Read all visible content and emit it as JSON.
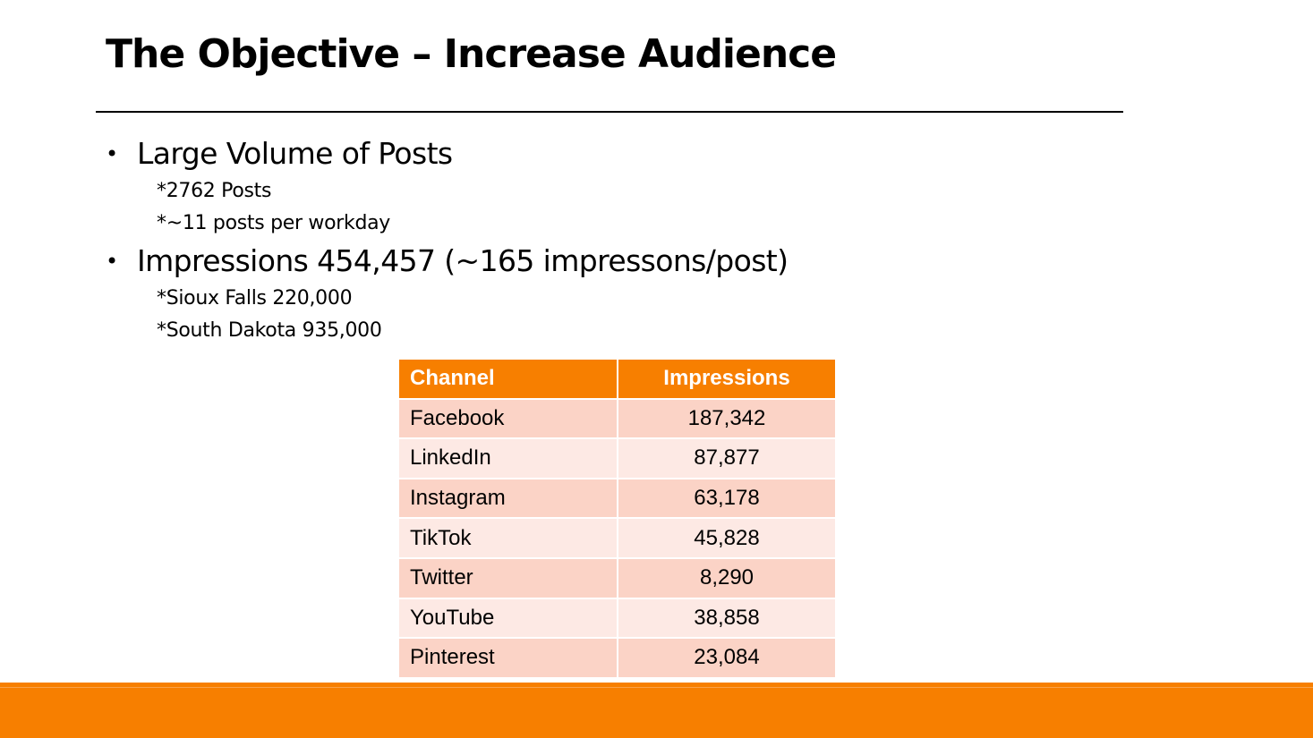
{
  "slide": {
    "title": "The Objective – Increase Audience",
    "bullets": [
      {
        "text": "Large Volume of Posts",
        "subs": [
          "*2762 Posts",
          "*~11 posts per workday"
        ]
      },
      {
        "text": "Impressions 454,457 (~165 impressons/post)",
        "subs": [
          "*Sioux Falls 220,000",
          "*South Dakota 935,000"
        ]
      }
    ],
    "bullet_glyph": "•"
  },
  "table": {
    "headers": [
      "Channel",
      "Impressions"
    ],
    "rows": [
      [
        "Facebook",
        "187,342"
      ],
      [
        "LinkedIn",
        "87,877"
      ],
      [
        "Instagram",
        "63,178"
      ],
      [
        "TikTok",
        "45,828"
      ],
      [
        "Twitter",
        "8,290"
      ],
      [
        "YouTube",
        "38,858"
      ],
      [
        "Pinterest",
        "23,084"
      ]
    ]
  },
  "colors": {
    "accent": "#f77f00",
    "row_dark": "#fbd3c6",
    "row_light": "#fde9e4"
  }
}
